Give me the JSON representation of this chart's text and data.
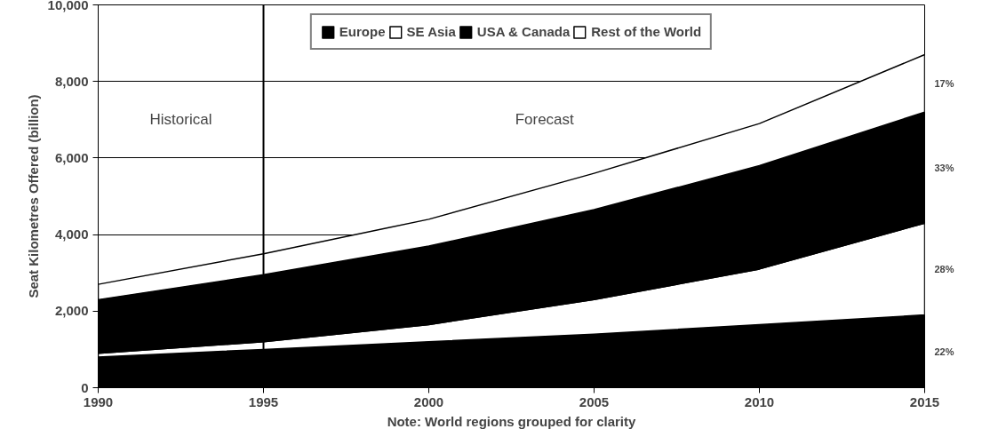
{
  "chart_data": {
    "type": "area",
    "stacked": true,
    "ylabel": "Seat Kilometres Offered (billion)",
    "xlabel": "Note: World regions grouped for clarity",
    "x": [
      1990,
      1995,
      2000,
      2005,
      2010,
      2015
    ],
    "series": [
      {
        "name": "Europe",
        "color": "#000000",
        "values": [
          800,
          1000,
          1200,
          1400,
          1650,
          1900
        ]
      },
      {
        "name": "SE Asia",
        "color": "#ffffff",
        "values": [
          100,
          200,
          450,
          900,
          1450,
          2400
        ]
      },
      {
        "name": "USA & Canada",
        "color": "#000000",
        "values": [
          1400,
          1750,
          2050,
          2350,
          2700,
          2900
        ]
      },
      {
        "name": "Rest of the World",
        "color": "#ffffff",
        "values": [
          400,
          550,
          700,
          950,
          1100,
          1500
        ]
      }
    ],
    "xlim": [
      1990,
      2015
    ],
    "ylim": [
      0,
      10000
    ],
    "xticks": [
      1990,
      1995,
      2000,
      2005,
      2010,
      2015
    ],
    "yticks": [
      {
        "value": 0,
        "label": "0"
      },
      {
        "value": 2000,
        "label": "2,000"
      },
      {
        "value": 4000,
        "label": "4,000"
      },
      {
        "value": 6000,
        "label": "6,000"
      },
      {
        "value": 8000,
        "label": "8,000"
      },
      {
        "value": 10000,
        "label": "10,000"
      }
    ],
    "ref_lines": [
      {
        "axis": "x",
        "value": 1995,
        "color": "#000000"
      }
    ],
    "annotations": [
      "Historical",
      "Forecast",
      "22%",
      "28%",
      "33%",
      "17%"
    ],
    "grid": "y",
    "legend": "top"
  }
}
